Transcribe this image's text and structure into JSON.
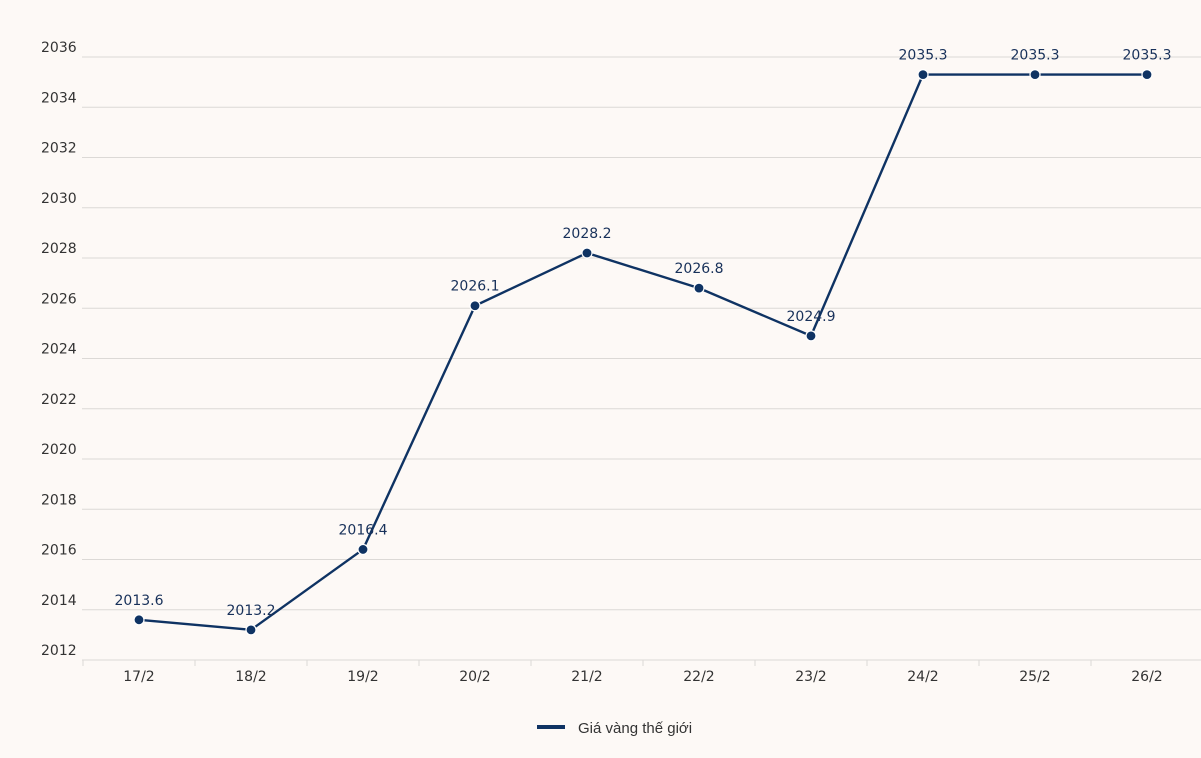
{
  "colors": {
    "background": "#fdf9f6",
    "series": "#0f3363",
    "grid": "#dcd9d6",
    "axis_text": "#333333"
  },
  "chart_data": {
    "type": "line",
    "title": "",
    "xlabel": "",
    "ylabel": "",
    "categories": [
      "17/2",
      "18/2",
      "19/2",
      "20/2",
      "21/2",
      "22/2",
      "23/2",
      "24/2",
      "25/2",
      "26/2"
    ],
    "series": [
      {
        "name": "Giá vàng thế giới",
        "values": [
          2013.6,
          2013.2,
          2016.4,
          2026.1,
          2028.2,
          2026.8,
          2024.9,
          2035.3,
          2035.3,
          2035.3
        ],
        "labels": [
          "2013.6",
          "2013.2",
          "2016.4",
          "2026.1",
          "2028.2",
          "2026.8",
          "2024.9",
          "2035.3",
          "2035.3",
          "2035.3"
        ]
      }
    ],
    "ylim": [
      2012,
      2036
    ],
    "yticks": [
      "2012",
      "2014",
      "2016",
      "2018",
      "2020",
      "2022",
      "2024",
      "2026",
      "2028",
      "2030",
      "2032",
      "2034",
      "2036"
    ],
    "grid": true,
    "legend": "bottom-center",
    "markers": true,
    "data_labels": true
  }
}
